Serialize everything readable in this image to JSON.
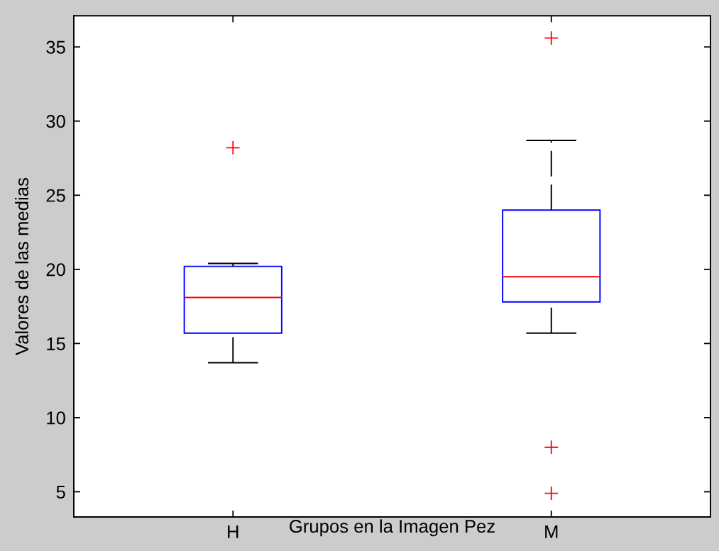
{
  "chart_data": {
    "type": "box",
    "xlabel": "Grupos en la Imagen Pez",
    "ylabel": "Valores de las medias",
    "categories": [
      "H",
      "M"
    ],
    "series": [
      {
        "color": "#0000ff",
        "boxes": [
          {
            "low": 13.7,
            "q1": 15.7,
            "median": 18.1,
            "q3": 20.2,
            "high": 20.4,
            "outliers": [
              28.2
            ]
          },
          {
            "low": 15.7,
            "q1": 17.8,
            "median": 19.5,
            "q3": 24.0,
            "high": 28.7,
            "outliers": [
              35.6,
              8.0,
              4.9
            ]
          }
        ]
      }
    ],
    "ylim": [
      3.3,
      37.1
    ],
    "yticks": [
      5,
      10,
      15,
      20,
      25,
      30,
      35
    ],
    "grid": false,
    "line_style": "dashed"
  }
}
